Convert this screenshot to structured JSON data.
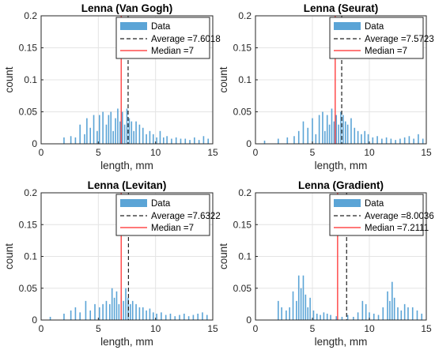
{
  "chart_data": [
    {
      "type": "bar",
      "title": "Lenna (Van Gogh)",
      "xlabel": "length, mm",
      "ylabel": "count",
      "xlim": [
        0,
        15
      ],
      "ylim": [
        0,
        0.2
      ],
      "xticks": [
        "0",
        "5",
        "10",
        "15"
      ],
      "yticks": [
        "0",
        "0.05",
        "0.1",
        "0.15",
        "0.2"
      ],
      "grid": true,
      "legend_position": "top-right",
      "series_color": "#5ba4d6",
      "average_color": "#222222",
      "median_color": "#ff4d4d",
      "legend": [
        "Data",
        "Average =7.6018",
        "Median =7"
      ],
      "average": 7.6018,
      "median": 7,
      "bars": [
        [
          2,
          0.01
        ],
        [
          2.6,
          0.012
        ],
        [
          3,
          0.01
        ],
        [
          3.4,
          0.03
        ],
        [
          3.8,
          0.015
        ],
        [
          4,
          0.04
        ],
        [
          4.3,
          0.025
        ],
        [
          4.6,
          0.045
        ],
        [
          4.9,
          0.02
        ],
        [
          5.1,
          0.045
        ],
        [
          5.4,
          0.05
        ],
        [
          5.7,
          0.03
        ],
        [
          5.9,
          0.045
        ],
        [
          6.1,
          0.05
        ],
        [
          6.3,
          0.02
        ],
        [
          6.5,
          0.04
        ],
        [
          6.7,
          0.055
        ],
        [
          6.9,
          0.035
        ],
        [
          7.1,
          0.05
        ],
        [
          7.3,
          0.03
        ],
        [
          7.5,
          0.055
        ],
        [
          7.7,
          0.04
        ],
        [
          7.9,
          0.035
        ],
        [
          8.1,
          0.02
        ],
        [
          8.3,
          0.035
        ],
        [
          8.6,
          0.03
        ],
        [
          8.9,
          0.025
        ],
        [
          9.2,
          0.015
        ],
        [
          9.5,
          0.02
        ],
        [
          9.8,
          0.015
        ],
        [
          10.1,
          0.01
        ],
        [
          10.4,
          0.02
        ],
        [
          10.7,
          0.01
        ],
        [
          11,
          0.012
        ],
        [
          11.4,
          0.008
        ],
        [
          11.8,
          0.01
        ],
        [
          12.2,
          0.008
        ],
        [
          12.6,
          0.008
        ],
        [
          13,
          0.006
        ],
        [
          13.4,
          0.01
        ],
        [
          13.8,
          0.006
        ],
        [
          14.2,
          0.012
        ],
        [
          14.6,
          0.008
        ]
      ]
    },
    {
      "type": "bar",
      "title": "Lenna (Seurat)",
      "xlabel": "length, mm",
      "ylabel": "count",
      "xlim": [
        0,
        15
      ],
      "ylim": [
        0,
        0.2
      ],
      "xticks": [
        "0",
        "5",
        "10",
        "15"
      ],
      "yticks": [
        "0",
        "0.05",
        "0.1",
        "0.15",
        "0.2"
      ],
      "grid": true,
      "legend_position": "top-right",
      "series_color": "#5ba4d6",
      "average_color": "#222222",
      "median_color": "#ff4d4d",
      "legend": [
        "Data",
        "Average =7.5723",
        "Median =7"
      ],
      "average": 7.5723,
      "median": 7,
      "bars": [
        [
          0.8,
          0.005
        ],
        [
          2,
          0.008
        ],
        [
          2.8,
          0.01
        ],
        [
          3.4,
          0.012
        ],
        [
          3.8,
          0.02
        ],
        [
          4.2,
          0.035
        ],
        [
          4.6,
          0.025
        ],
        [
          5,
          0.04
        ],
        [
          5.3,
          0.015
        ],
        [
          5.6,
          0.045
        ],
        [
          5.9,
          0.05
        ],
        [
          6.1,
          0.02
        ],
        [
          6.3,
          0.045
        ],
        [
          6.5,
          0.03
        ],
        [
          6.7,
          0.055
        ],
        [
          6.9,
          0.035
        ],
        [
          7.1,
          0.045
        ],
        [
          7.3,
          0.03
        ],
        [
          7.5,
          0.05
        ],
        [
          7.7,
          0.045
        ],
        [
          7.9,
          0.035
        ],
        [
          8.1,
          0.03
        ],
        [
          8.4,
          0.04
        ],
        [
          8.7,
          0.025
        ],
        [
          9,
          0.02
        ],
        [
          9.3,
          0.015
        ],
        [
          9.6,
          0.02
        ],
        [
          9.9,
          0.015
        ],
        [
          10.3,
          0.01
        ],
        [
          10.7,
          0.012
        ],
        [
          11.1,
          0.008
        ],
        [
          11.5,
          0.01
        ],
        [
          11.9,
          0.008
        ],
        [
          12.3,
          0.006
        ],
        [
          12.7,
          0.008
        ],
        [
          13.1,
          0.01
        ],
        [
          13.5,
          0.012
        ],
        [
          13.9,
          0.008
        ],
        [
          14.3,
          0.015
        ],
        [
          14.7,
          0.008
        ]
      ]
    },
    {
      "type": "bar",
      "title": "Lenna (Levitan)",
      "xlabel": "length, mm",
      "ylabel": "count",
      "xlim": [
        0,
        15
      ],
      "ylim": [
        0,
        0.2
      ],
      "xticks": [
        "0",
        "5",
        "10",
        "15"
      ],
      "yticks": [
        "0",
        "0.05",
        "0.1",
        "0.15",
        "0.2"
      ],
      "grid": true,
      "legend_position": "top-right",
      "series_color": "#5ba4d6",
      "average_color": "#222222",
      "median_color": "#ff4d4d",
      "legend": [
        "Data",
        "Average =7.6322",
        "Median =7"
      ],
      "average": 7.6322,
      "median": 7,
      "bars": [
        [
          0.8,
          0.005
        ],
        [
          2,
          0.01
        ],
        [
          2.6,
          0.015
        ],
        [
          3,
          0.02
        ],
        [
          3.4,
          0.012
        ],
        [
          3.9,
          0.03
        ],
        [
          4.3,
          0.015
        ],
        [
          4.7,
          0.025
        ],
        [
          5.1,
          0.02
        ],
        [
          5.4,
          0.025
        ],
        [
          5.7,
          0.03
        ],
        [
          6,
          0.025
        ],
        [
          6.2,
          0.05
        ],
        [
          6.4,
          0.035
        ],
        [
          6.6,
          0.045
        ],
        [
          6.8,
          0.025
        ],
        [
          7,
          0.04
        ],
        [
          7.2,
          0.03
        ],
        [
          7.4,
          0.05
        ],
        [
          7.6,
          0.035
        ],
        [
          7.8,
          0.025
        ],
        [
          8,
          0.03
        ],
        [
          8.3,
          0.025
        ],
        [
          8.6,
          0.02
        ],
        [
          8.9,
          0.02
        ],
        [
          9.2,
          0.015
        ],
        [
          9.5,
          0.018
        ],
        [
          9.8,
          0.012
        ],
        [
          10.1,
          0.01
        ],
        [
          10.5,
          0.012
        ],
        [
          10.9,
          0.008
        ],
        [
          11.3,
          0.01
        ],
        [
          11.7,
          0.006
        ],
        [
          12.1,
          0.008
        ],
        [
          12.5,
          0.01
        ],
        [
          12.9,
          0.006
        ],
        [
          13.3,
          0.008
        ],
        [
          13.7,
          0.01
        ],
        [
          14.1,
          0.012
        ],
        [
          14.5,
          0.008
        ]
      ]
    },
    {
      "type": "bar",
      "title": "Lenna (Gradient)",
      "xlabel": "length, mm",
      "ylabel": "count",
      "xlim": [
        0,
        15
      ],
      "ylim": [
        0,
        0.2
      ],
      "xticks": [
        "0",
        "5",
        "10",
        "15"
      ],
      "yticks": [
        "0",
        "0.05",
        "0.1",
        "0.15",
        "0.2"
      ],
      "grid": true,
      "legend_position": "top-right",
      "series_color": "#5ba4d6",
      "average_color": "#222222",
      "median_color": "#ff4d4d",
      "legend": [
        "Data",
        "Average =8.0036",
        "Median =7.2111"
      ],
      "average": 8.0036,
      "median": 7.2111,
      "bars": [
        [
          2,
          0.03
        ],
        [
          2.3,
          0.02
        ],
        [
          2.7,
          0.015
        ],
        [
          3,
          0.02
        ],
        [
          3.3,
          0.045
        ],
        [
          3.6,
          0.03
        ],
        [
          3.8,
          0.07
        ],
        [
          4,
          0.05
        ],
        [
          4.2,
          0.07
        ],
        [
          4.4,
          0.04
        ],
        [
          4.6,
          0.02
        ],
        [
          4.8,
          0.035
        ],
        [
          5.1,
          0.015
        ],
        [
          5.4,
          0.01
        ],
        [
          5.7,
          0.008
        ],
        [
          6,
          0.012
        ],
        [
          6.3,
          0.01
        ],
        [
          6.6,
          0.008
        ],
        [
          7.1,
          0.006
        ],
        [
          7.6,
          0.005
        ],
        [
          8.1,
          0.008
        ],
        [
          8.6,
          0.005
        ],
        [
          9,
          0.012
        ],
        [
          9.4,
          0.03
        ],
        [
          9.7,
          0.025
        ],
        [
          10,
          0.012
        ],
        [
          10.4,
          0.01
        ],
        [
          10.8,
          0.008
        ],
        [
          11.2,
          0.02
        ],
        [
          11.6,
          0.045
        ],
        [
          11.8,
          0.03
        ],
        [
          12,
          0.06
        ],
        [
          12.2,
          0.035
        ],
        [
          12.5,
          0.02
        ],
        [
          12.8,
          0.015
        ],
        [
          13.1,
          0.025
        ],
        [
          13.4,
          0.02
        ],
        [
          13.8,
          0.02
        ],
        [
          14.2,
          0.015
        ],
        [
          14.6,
          0.01
        ]
      ]
    }
  ]
}
